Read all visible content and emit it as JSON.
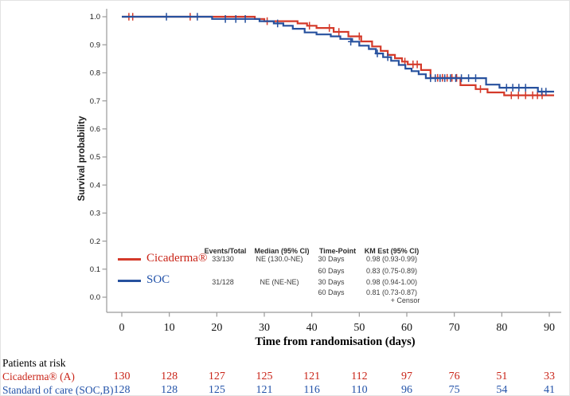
{
  "colors": {
    "cicaderma_line": "#d43a2a",
    "soc_line": "#27519e",
    "cicaderma_text": "#c92418",
    "soc_text": "#2353a9",
    "axis": "#9a9a9a",
    "tick_label": "#111111"
  },
  "legend": {
    "items": [
      {
        "label": "Cicaderma®",
        "color": "#c92418"
      },
      {
        "label": "SOC",
        "color": "#2353a9"
      }
    ]
  },
  "stats_table": {
    "headers": [
      "Events/Total",
      "Median (95% CI)",
      "Time-Point",
      "KM Est (95% CI)"
    ],
    "rows": [
      [
        "33/130",
        "NE (130.0-NE)",
        "30 Days",
        "0.98 (0.93-0.99)"
      ],
      [
        "",
        "",
        "60 Days",
        "0.83 (0.75-0.89)"
      ],
      [
        "31/128",
        "NE (NE-NE)",
        "30 Days",
        "0.98 (0.94-1.00)"
      ],
      [
        "",
        "",
        "60 Days",
        "0.81 (0.73-0.87)"
      ]
    ],
    "censor_note": "+ Censor"
  },
  "risk_table": {
    "title": "Patients at risk",
    "rows": [
      {
        "label": "Cicaderma® (A)",
        "color": "#c92418",
        "values": [
          "130",
          "128",
          "127",
          "125",
          "121",
          "112",
          "97",
          "76",
          "51",
          "33"
        ]
      },
      {
        "label": "Standard of care (SOC,B)",
        "color": "#2353a9",
        "values": [
          "128",
          "128",
          "125",
          "121",
          "116",
          "110",
          "96",
          "75",
          "54",
          "41"
        ]
      }
    ]
  },
  "chart_data": {
    "type": "line",
    "subtype": "kaplan-meier-step",
    "title": "",
    "xlabel": "Time from randomisation (days)",
    "ylabel": "Survival probability",
    "xlim": [
      0,
      90
    ],
    "ylim": [
      0.0,
      1.0
    ],
    "x_ticks": [
      0,
      10,
      20,
      30,
      40,
      50,
      60,
      70,
      80,
      90
    ],
    "y_ticks": [
      "1.0",
      "0.9",
      "0.8",
      "0.7",
      "0.6",
      "0.5",
      "0.4",
      "0.3",
      "0.2",
      "0.1",
      "0.0"
    ],
    "grid": false,
    "legend_position": "inside-lower-left",
    "series": [
      {
        "name": "Cicaderma®",
        "color": "#d43a2a",
        "end_day": 91,
        "points": [
          [
            0,
            1.0
          ],
          [
            28,
            0.992
          ],
          [
            30,
            0.984
          ],
          [
            37,
            0.976
          ],
          [
            39,
            0.968
          ],
          [
            41,
            0.96
          ],
          [
            44.6,
            0.946
          ],
          [
            47.7,
            0.93
          ],
          [
            50.4,
            0.912
          ],
          [
            52.7,
            0.894
          ],
          [
            54.5,
            0.878
          ],
          [
            56,
            0.864
          ],
          [
            57.5,
            0.852
          ],
          [
            59,
            0.84
          ],
          [
            60.2,
            0.83
          ],
          [
            63,
            0.81
          ],
          [
            65,
            0.782
          ],
          [
            71.3,
            0.756
          ],
          [
            74.5,
            0.742
          ],
          [
            77,
            0.73
          ],
          [
            80.5,
            0.72
          ]
        ],
        "censors": [
          [
            1.5,
            1.0
          ],
          [
            2.3,
            1.0
          ],
          [
            14.4,
            1.0
          ],
          [
            30.6,
            0.984
          ],
          [
            39.5,
            0.968
          ],
          [
            43.7,
            0.96
          ],
          [
            45.7,
            0.946
          ],
          [
            50,
            0.93
          ],
          [
            59.6,
            0.84
          ],
          [
            61.3,
            0.83
          ],
          [
            62.2,
            0.83
          ],
          [
            66.5,
            0.782
          ],
          [
            67.5,
            0.782
          ],
          [
            68.5,
            0.782
          ],
          [
            69.5,
            0.782
          ],
          [
            70.5,
            0.782
          ],
          [
            75.5,
            0.742
          ],
          [
            82,
            0.72
          ],
          [
            83.5,
            0.72
          ],
          [
            85,
            0.72
          ],
          [
            86.5,
            0.72
          ],
          [
            87.5,
            0.72
          ],
          [
            88.5,
            0.72
          ]
        ]
      },
      {
        "name": "SOC",
        "color": "#27519e",
        "end_day": 91,
        "points": [
          [
            0,
            1.0
          ],
          [
            19,
            0.992
          ],
          [
            29,
            0.984
          ],
          [
            32,
            0.976
          ],
          [
            34,
            0.968
          ],
          [
            36,
            0.957
          ],
          [
            38.5,
            0.944
          ],
          [
            41,
            0.937
          ],
          [
            44,
            0.93
          ],
          [
            46,
            0.921
          ],
          [
            48.5,
            0.911
          ],
          [
            50,
            0.897
          ],
          [
            52,
            0.885
          ],
          [
            53.5,
            0.869
          ],
          [
            55,
            0.856
          ],
          [
            56.7,
            0.843
          ],
          [
            58.3,
            0.828
          ],
          [
            59.7,
            0.815
          ],
          [
            61,
            0.806
          ],
          [
            62.5,
            0.795
          ],
          [
            64,
            0.781
          ],
          [
            76.7,
            0.758
          ],
          [
            79.5,
            0.747
          ],
          [
            87.6,
            0.733
          ]
        ],
        "censors": [
          [
            9.4,
            1.0
          ],
          [
            15.9,
            1.0
          ],
          [
            21.8,
            0.992
          ],
          [
            24,
            0.992
          ],
          [
            26,
            0.992
          ],
          [
            32.8,
            0.976
          ],
          [
            48.2,
            0.911
          ],
          [
            53.8,
            0.869
          ],
          [
            56,
            0.856
          ],
          [
            65,
            0.781
          ],
          [
            66,
            0.781
          ],
          [
            67,
            0.781
          ],
          [
            68,
            0.781
          ],
          [
            69.2,
            0.781
          ],
          [
            70.3,
            0.781
          ],
          [
            71.5,
            0.781
          ],
          [
            73,
            0.781
          ],
          [
            74.5,
            0.781
          ],
          [
            81,
            0.747
          ],
          [
            82.3,
            0.747
          ],
          [
            83.6,
            0.747
          ],
          [
            85,
            0.747
          ],
          [
            88.4,
            0.733
          ],
          [
            89.3,
            0.733
          ]
        ]
      }
    ]
  }
}
